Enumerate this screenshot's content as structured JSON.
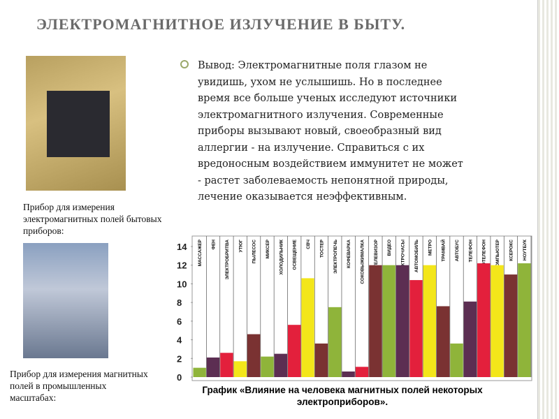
{
  "header": {
    "title": "ЭЛЕКТРОМАГНИТНОЕ ИЗЛУЧЕНИЕ В БЫТУ."
  },
  "conclusion_lines": [
    "Вывод:  Электромагнитные поля глазом не",
    "увидишь, ухом не услышишь. Но в последнее",
    "время все больше ученых исследуют источники",
    "электромагнитного излучения. Современные",
    "приборы вызывают новый, своеобразный вид",
    "аллергии - на излучение. Справиться с их",
    "вредоносным воздействием иммунитет не может",
    "- растет заболеваемость непонятной природы,",
    "лечение оказывается неэффективным."
  ],
  "photo_captions": [
    "Прибор для измерения электромагнитных полей  бытовых приборов:",
    "Прибор для измерения магнитных полей в промышленных масштабах:"
  ],
  "chart_data": {
    "type": "bar",
    "title": "График «Влияние на человека магнитных полей некоторых электроприборов».",
    "categories": [
      "МАССАЖЕР",
      "ФЕН",
      "ЭЛЕКТРОБРИТВА",
      "УТЮГ",
      "ПЫЛЕСОС",
      "МИКСЕР",
      "ХОЛОДИЛЬНИК",
      "ОСВЕЩЕНИЕ",
      "СВЧ",
      "ТОСТЕР",
      "ЭЛЕКТРОПЕЧЬ",
      "КОФЕВАРКА",
      "СОКОВЫЖИМАЛКА",
      "ТЕЛЕВИЗОР",
      "ВИДЕО",
      "ЭЛЕКТРОЧАСЫ",
      "АВТОМОБИЛЬ",
      "МЕТРО",
      "ТРАМВАЙ",
      "АВТОБУС",
      "ТЕЛЕФОН",
      "РАДИОТЕЛЕФОН",
      "КОМПЬЮТЕР",
      "КСЕРОКС",
      "НОУТБУК"
    ],
    "values": [
      1,
      2.1,
      2.6,
      1.7,
      4.6,
      2.2,
      2.5,
      5.6,
      10.6,
      3.6,
      7.5,
      0.6,
      1.1,
      12,
      12,
      12,
      10.4,
      12,
      7.6,
      3.6,
      8.1,
      12.2,
      12,
      11,
      12.2
    ],
    "colors": [
      "#8fb43a",
      "#5c2e52",
      "#e3203c",
      "#f3e61a",
      "#7a3232",
      "#8fb43a",
      "#5c2e52",
      "#e3203c",
      "#f3e61a",
      "#7a3232",
      "#8fb43a",
      "#5c2e52",
      "#e3203c",
      "#7a3232",
      "#8fb43a",
      "#5c2e52",
      "#e3203c",
      "#f3e61a",
      "#7a3232",
      "#8fb43a",
      "#5c2e52",
      "#e3203c",
      "#f3e61a",
      "#7a3232",
      "#8fb43a"
    ],
    "ylim": [
      0,
      14
    ],
    "yticks": [
      0,
      2,
      4,
      6,
      8,
      10,
      12,
      14
    ]
  }
}
